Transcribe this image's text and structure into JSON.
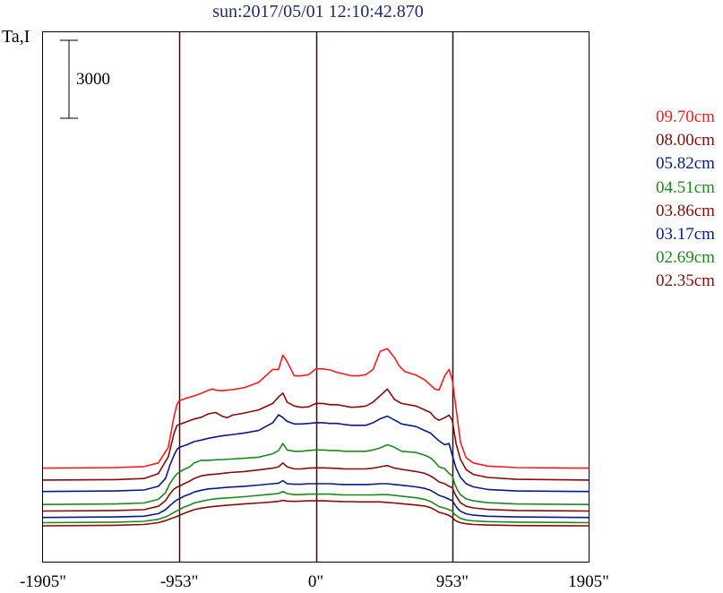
{
  "title": "sun:2017/05/01 12:10:42.870",
  "ylabel": "Ta,I",
  "scale_bar": {
    "label": "3000",
    "value": 3000
  },
  "chart_data": {
    "type": "line",
    "title": "sun:2017/05/01 12:10:42.870",
    "ylabel": "Ta,I",
    "xlabel": "",
    "x_ticks": [
      {
        "value": -1905,
        "label": "-1905\""
      },
      {
        "value": -953,
        "label": "-953\""
      },
      {
        "value": 0,
        "label": "0\""
      },
      {
        "value": 953,
        "label": "953\""
      },
      {
        "value": 1905,
        "label": "1905\""
      }
    ],
    "xlim": [
      -1905,
      1905
    ],
    "vertical_lines": [
      -953,
      0,
      953
    ],
    "grid": false,
    "legend": "right",
    "stacked_offset": true,
    "series": [
      {
        "name": "09.70cm",
        "color": "#ff1a1a",
        "base": 2.6,
        "x": [
          -1905,
          -1400,
          -1200,
          -1100,
          -1030,
          -990,
          -970,
          -953,
          -900,
          -850,
          -800,
          -750,
          -720,
          -700,
          -660,
          -620,
          -580,
          -500,
          -400,
          -300,
          -260,
          -230,
          -200,
          -150,
          -100,
          -50,
          0,
          50,
          100,
          150,
          200,
          250,
          300,
          350,
          400,
          450,
          500,
          550,
          580,
          620,
          700,
          760,
          800,
          830,
          860,
          900,
          930,
          953,
          980,
          1010,
          1050,
          1100,
          1200,
          1400,
          1905
        ],
        "y": [
          0,
          0.02,
          0.06,
          0.2,
          0.8,
          2.0,
          2.45,
          2.6,
          2.7,
          2.78,
          2.88,
          3.0,
          3.05,
          3.0,
          2.98,
          3.0,
          3.02,
          3.1,
          3.3,
          3.8,
          3.8,
          4.35,
          4.1,
          3.55,
          3.55,
          3.6,
          3.82,
          3.82,
          3.78,
          3.68,
          3.62,
          3.55,
          3.55,
          3.6,
          3.8,
          4.5,
          4.6,
          4.25,
          3.95,
          3.72,
          3.58,
          3.4,
          3.2,
          3.05,
          3.0,
          3.55,
          3.8,
          3.4,
          2.3,
          1.0,
          0.4,
          0.2,
          0.08,
          0.02,
          0
        ]
      },
      {
        "name": "08.00cm",
        "color": "#8b0a0a",
        "base": 2.14,
        "x": [
          -1905,
          -1400,
          -1200,
          -1100,
          -1030,
          -990,
          -970,
          -953,
          -900,
          -850,
          -800,
          -750,
          -700,
          -650,
          -620,
          -580,
          -500,
          -400,
          -300,
          -260,
          -230,
          -200,
          -150,
          -100,
          -50,
          0,
          50,
          100,
          150,
          200,
          250,
          300,
          350,
          400,
          450,
          500,
          550,
          600,
          700,
          760,
          800,
          830,
          860,
          900,
          930,
          953,
          980,
          1010,
          1050,
          1100,
          1200,
          1400,
          1905
        ],
        "y": [
          0,
          0.02,
          0.06,
          0.25,
          0.9,
          1.8,
          2.1,
          2.14,
          2.25,
          2.35,
          2.42,
          2.55,
          2.6,
          2.45,
          2.4,
          2.5,
          2.58,
          2.7,
          2.95,
          3.2,
          3.35,
          3.0,
          2.85,
          2.8,
          2.82,
          2.95,
          2.95,
          2.9,
          2.9,
          2.85,
          2.8,
          2.82,
          2.85,
          3.0,
          3.25,
          3.5,
          3.1,
          2.95,
          2.85,
          2.7,
          2.6,
          2.4,
          2.3,
          2.4,
          2.5,
          2.3,
          1.4,
          0.8,
          0.4,
          0.22,
          0.1,
          0.03,
          0
        ]
      },
      {
        "name": "05.82cm",
        "color": "#0a1a8b",
        "base": 1.7,
        "x": [
          -1905,
          -1400,
          -1200,
          -1100,
          -1050,
          -1020,
          -990,
          -970,
          -953,
          -900,
          -850,
          -800,
          -750,
          -700,
          -650,
          -600,
          -500,
          -400,
          -300,
          -260,
          -230,
          -200,
          -150,
          -100,
          -50,
          0,
          50,
          100,
          150,
          200,
          250,
          300,
          350,
          400,
          450,
          500,
          550,
          600,
          700,
          760,
          800,
          830,
          860,
          900,
          930,
          953,
          980,
          1010,
          1050,
          1100,
          1200,
          1400,
          1905
        ],
        "y": [
          0,
          0.02,
          0.06,
          0.2,
          0.5,
          1.0,
          1.4,
          1.62,
          1.7,
          1.8,
          1.92,
          1.98,
          2.05,
          2.1,
          2.15,
          2.18,
          2.25,
          2.35,
          2.65,
          2.95,
          2.85,
          2.7,
          2.6,
          2.6,
          2.62,
          2.65,
          2.65,
          2.62,
          2.62,
          2.58,
          2.55,
          2.55,
          2.55,
          2.65,
          2.8,
          2.9,
          2.75,
          2.6,
          2.5,
          2.35,
          2.25,
          2.1,
          1.95,
          1.8,
          1.85,
          1.4,
          0.9,
          0.55,
          0.3,
          0.18,
          0.08,
          0.02,
          0
        ]
      },
      {
        "name": "04.51cm",
        "color": "#1a8b1a",
        "base": 1.2,
        "x": [
          -1905,
          -1400,
          -1200,
          -1100,
          -1050,
          -1020,
          -990,
          -970,
          -953,
          -920,
          -880,
          -850,
          -800,
          -750,
          -700,
          -650,
          -600,
          -500,
          -400,
          -300,
          -260,
          -230,
          -200,
          -150,
          -100,
          -50,
          0,
          50,
          100,
          150,
          200,
          250,
          300,
          350,
          400,
          450,
          500,
          550,
          600,
          700,
          760,
          800,
          830,
          860,
          900,
          930,
          953,
          970,
          990,
          1010,
          1050,
          1100,
          1200,
          1400,
          1905
        ],
        "y": [
          0,
          0.02,
          0.06,
          0.2,
          0.45,
          0.8,
          1.05,
          1.18,
          1.25,
          1.35,
          1.45,
          1.6,
          1.7,
          1.7,
          1.72,
          1.73,
          1.75,
          1.78,
          1.82,
          1.95,
          2.08,
          2.35,
          2.1,
          2.05,
          2.05,
          2.08,
          2.1,
          2.1,
          2.08,
          2.08,
          2.05,
          2.05,
          2.05,
          2.05,
          2.1,
          2.18,
          2.3,
          2.2,
          2.05,
          2.0,
          1.9,
          1.8,
          1.65,
          1.45,
          1.38,
          1.2,
          1.1,
          0.8,
          0.55,
          0.38,
          0.22,
          0.14,
          0.07,
          0.02,
          0
        ]
      },
      {
        "name": "03.86cm",
        "color": "#8b0a0a",
        "base": 0.95,
        "x": [
          -1905,
          -1400,
          -1200,
          -1100,
          -1050,
          -1020,
          -990,
          -970,
          -953,
          -920,
          -880,
          -850,
          -800,
          -750,
          -700,
          -650,
          -600,
          -500,
          -400,
          -300,
          -260,
          -230,
          -200,
          -150,
          -100,
          -50,
          0,
          50,
          100,
          150,
          200,
          250,
          300,
          350,
          400,
          450,
          500,
          550,
          600,
          700,
          760,
          800,
          830,
          860,
          900,
          930,
          953,
          970,
          990,
          1010,
          1050,
          1100,
          1200,
          1400,
          1905
        ],
        "y": [
          0,
          0.02,
          0.05,
          0.18,
          0.4,
          0.65,
          0.85,
          0.92,
          0.95,
          1.05,
          1.15,
          1.25,
          1.35,
          1.4,
          1.42,
          1.45,
          1.48,
          1.52,
          1.58,
          1.65,
          1.7,
          1.85,
          1.7,
          1.62,
          1.62,
          1.65,
          1.66,
          1.66,
          1.65,
          1.64,
          1.62,
          1.62,
          1.62,
          1.62,
          1.65,
          1.7,
          1.75,
          1.65,
          1.6,
          1.52,
          1.45,
          1.35,
          1.25,
          1.12,
          1.05,
          0.95,
          0.9,
          0.68,
          0.48,
          0.32,
          0.18,
          0.12,
          0.06,
          0.02,
          0
        ]
      },
      {
        "name": "03.17cm",
        "color": "#0a1a8b",
        "base": 0.7,
        "x": [
          -1905,
          -1400,
          -1200,
          -1100,
          -1050,
          -1020,
          -990,
          -970,
          -953,
          -920,
          -880,
          -850,
          -800,
          -750,
          -700,
          -650,
          -600,
          -500,
          -400,
          -300,
          -260,
          -230,
          -200,
          -150,
          -100,
          -50,
          0,
          50,
          100,
          150,
          200,
          250,
          300,
          350,
          400,
          450,
          500,
          550,
          600,
          700,
          760,
          800,
          830,
          860,
          900,
          930,
          953,
          970,
          990,
          1010,
          1050,
          1100,
          1200,
          1400,
          1905
        ],
        "y": [
          0,
          0.02,
          0.05,
          0.15,
          0.3,
          0.45,
          0.6,
          0.68,
          0.72,
          0.82,
          0.9,
          0.98,
          1.05,
          1.1,
          1.12,
          1.15,
          1.17,
          1.2,
          1.25,
          1.3,
          1.32,
          1.42,
          1.3,
          1.28,
          1.28,
          1.3,
          1.3,
          1.3,
          1.3,
          1.28,
          1.27,
          1.27,
          1.27,
          1.27,
          1.28,
          1.3,
          1.3,
          1.27,
          1.24,
          1.18,
          1.12,
          1.05,
          0.95,
          0.85,
          0.78,
          0.7,
          0.65,
          0.5,
          0.35,
          0.24,
          0.14,
          0.09,
          0.05,
          0.02,
          0
        ]
      },
      {
        "name": "02.69cm",
        "color": "#1a8b1a",
        "base": 0.5,
        "x": [
          -1905,
          -1400,
          -1200,
          -1100,
          -1050,
          -1020,
          -990,
          -970,
          -953,
          -920,
          -880,
          -850,
          -800,
          -750,
          -700,
          -650,
          -600,
          -500,
          -400,
          -300,
          -260,
          -230,
          -200,
          -150,
          -100,
          -50,
          0,
          50,
          100,
          150,
          200,
          250,
          300,
          350,
          400,
          450,
          500,
          550,
          600,
          700,
          760,
          800,
          830,
          860,
          900,
          930,
          953,
          970,
          990,
          1010,
          1050,
          1100,
          1200,
          1400,
          1905
        ],
        "y": [
          0,
          0.02,
          0.05,
          0.13,
          0.22,
          0.3,
          0.4,
          0.46,
          0.5,
          0.6,
          0.68,
          0.76,
          0.82,
          0.88,
          0.92,
          0.94,
          0.96,
          1.0,
          1.05,
          1.1,
          1.12,
          1.2,
          1.12,
          1.08,
          1.08,
          1.1,
          1.1,
          1.1,
          1.1,
          1.08,
          1.07,
          1.07,
          1.07,
          1.07,
          1.07,
          1.08,
          1.08,
          1.05,
          1.02,
          0.96,
          0.9,
          0.82,
          0.72,
          0.62,
          0.56,
          0.5,
          0.44,
          0.32,
          0.24,
          0.17,
          0.1,
          0.07,
          0.04,
          0.02,
          0
        ]
      },
      {
        "name": "02.35cm",
        "color": "#8b0a0a",
        "base": 0.38,
        "x": [
          -1905,
          -1400,
          -1200,
          -1100,
          -1050,
          -1020,
          -990,
          -970,
          -953,
          -920,
          -880,
          -850,
          -800,
          -750,
          -700,
          -650,
          -600,
          -500,
          -400,
          -300,
          -260,
          -230,
          -200,
          -150,
          -100,
          -50,
          0,
          50,
          100,
          150,
          200,
          250,
          300,
          350,
          400,
          450,
          500,
          550,
          600,
          700,
          760,
          800,
          830,
          860,
          900,
          930,
          953,
          970,
          990,
          1010,
          1050,
          1100,
          1200,
          1400,
          1905
        ],
        "y": [
          0,
          0.02,
          0.05,
          0.12,
          0.2,
          0.26,
          0.32,
          0.36,
          0.4,
          0.48,
          0.56,
          0.62,
          0.68,
          0.72,
          0.75,
          0.78,
          0.8,
          0.84,
          0.88,
          0.92,
          0.94,
          0.98,
          0.95,
          0.94,
          0.95,
          0.96,
          0.96,
          0.96,
          0.95,
          0.94,
          0.93,
          0.93,
          0.92,
          0.92,
          0.92,
          0.92,
          0.9,
          0.88,
          0.85,
          0.8,
          0.76,
          0.7,
          0.62,
          0.52,
          0.46,
          0.4,
          0.32,
          0.22,
          0.16,
          0.12,
          0.08,
          0.05,
          0.03,
          0.01,
          0
        ]
      }
    ]
  }
}
